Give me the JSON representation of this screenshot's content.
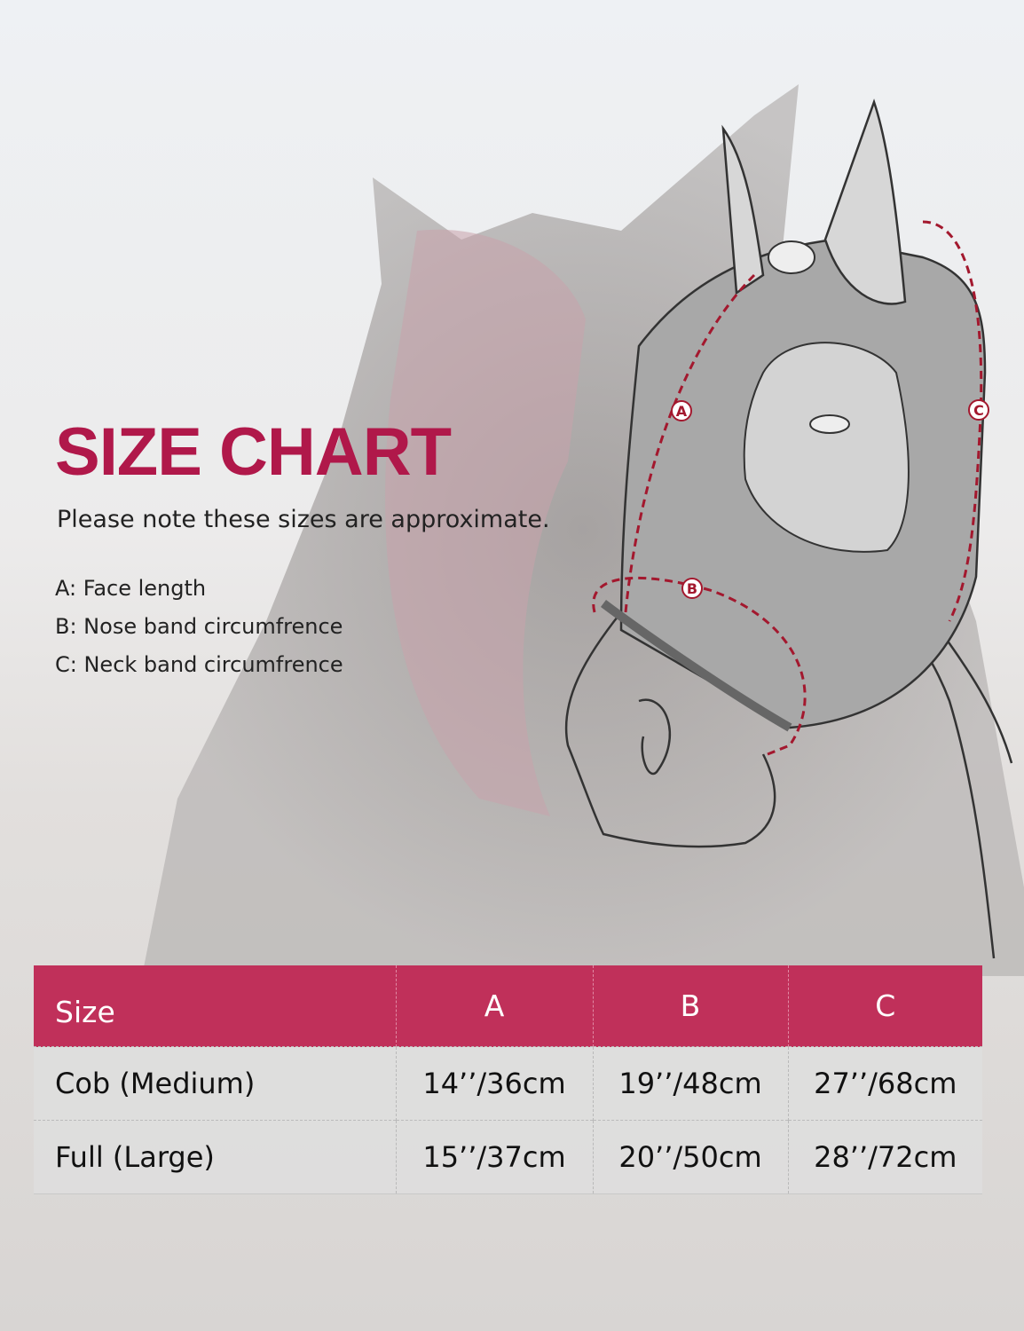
{
  "title": "SIZE CHART",
  "note": "Please note these sizes are approximate.",
  "legend": [
    "A: Face length",
    "B: Nose band circumfrence",
    "C: Neck band circumfrence"
  ],
  "diagram": {
    "labels": [
      "A",
      "B",
      "C"
    ],
    "arrow_color": "#a3182e",
    "mask_color": "#a8a8a8"
  },
  "colors": {
    "accent": "#b0184a",
    "header_bg": "#c0305a"
  },
  "table": {
    "headers": [
      "Size",
      "A",
      "B",
      "C"
    ],
    "rows": [
      [
        "Cob (Medium)",
        "14’’/36cm",
        "19’’/48cm",
        "27’’/68cm"
      ],
      [
        "Full (Large)",
        "15’’/37cm",
        "20’’/50cm",
        "28’’/72cm"
      ]
    ]
  }
}
